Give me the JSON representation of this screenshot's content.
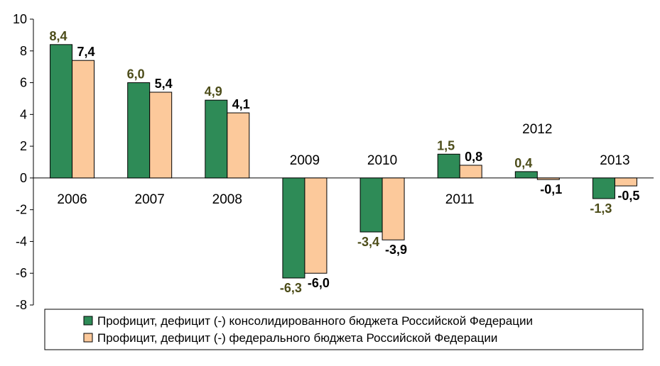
{
  "chart_data": {
    "type": "bar",
    "title": "",
    "xlabel": "",
    "ylabel": "",
    "ylim": [
      -8,
      10
    ],
    "yticks": [
      10,
      8,
      6,
      4,
      2,
      0,
      -2,
      -4,
      -6,
      -8
    ],
    "categories": [
      "2006",
      "2007",
      "2008",
      "2009",
      "2010",
      "2011",
      "2012",
      "2013"
    ],
    "series": [
      {
        "name": "Профицит, дефицит (-) консолидированного бюджета Российской Федерации",
        "color": "#2e8b57",
        "label_color": "#4d4d1a",
        "values": [
          8.4,
          6.0,
          4.9,
          -6.3,
          -3.4,
          1.5,
          0.4,
          -1.3
        ],
        "labels": [
          "8,4",
          "6,0",
          "4,9",
          "-6,3",
          "-3,4",
          "1,5",
          "0,4",
          "-1,3"
        ]
      },
      {
        "name": "Профицит, дефицит (-) федерального бюджета Российской Федерации",
        "color": "#fcc99b",
        "label_color": "#000000",
        "values": [
          7.4,
          5.4,
          4.1,
          -6.0,
          -3.9,
          0.8,
          -0.1,
          -0.5
        ],
        "labels": [
          "7,4",
          "5,4",
          "4,1",
          "-6,0",
          "-3,9",
          "0,8",
          "-0,1",
          "-0,5"
        ]
      }
    ],
    "legend_position": "bottom"
  }
}
